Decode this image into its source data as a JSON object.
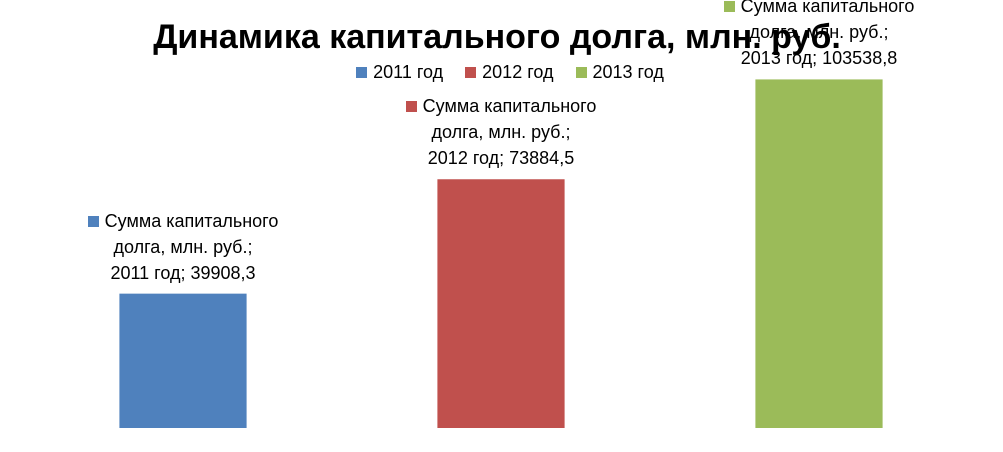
{
  "chart_data": {
    "type": "bar",
    "title": "Динамика капитального долга, млн. руб.",
    "categories": [
      "Сумма капитального долга, млн. руб."
    ],
    "data_label_separator": "; ",
    "series": [
      {
        "name": "2011 год",
        "color": "#4f81bd",
        "values": [
          39908.3
        ],
        "value_labels": [
          "39908,3"
        ]
      },
      {
        "name": "2012 год",
        "color": "#c0504d",
        "values": [
          73884.5
        ],
        "value_labels": [
          "73884,5"
        ]
      },
      {
        "name": "2013 год",
        "color": "#9bbb59",
        "values": [
          103538.8
        ],
        "value_labels": [
          "103538,8"
        ]
      }
    ],
    "ylim": [
      0,
      120000
    ],
    "legend": "top"
  }
}
